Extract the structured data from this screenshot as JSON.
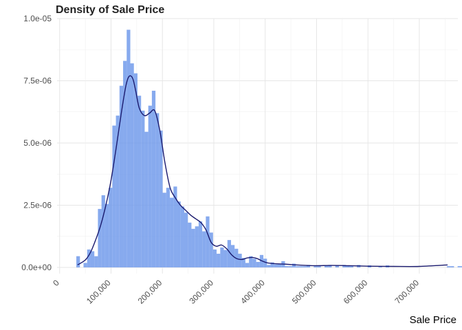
{
  "chart_data": {
    "type": "bar",
    "title": "Density of Sale Price",
    "xlabel": "Sale Price",
    "ylabel": "",
    "xlim": [
      -5000,
      775000
    ],
    "ylim": [
      -2.5e-07,
      1e-05
    ],
    "grid": true,
    "x_ticks": [
      {
        "value": 0,
        "label": "0"
      },
      {
        "value": 100000,
        "label": "100,000"
      },
      {
        "value": 200000,
        "label": "200,000"
      },
      {
        "value": 300000,
        "label": "300,000"
      },
      {
        "value": 400000,
        "label": "400,000"
      },
      {
        "value": 500000,
        "label": "500,000"
      },
      {
        "value": 600000,
        "label": "600,000"
      },
      {
        "value": 700000,
        "label": "700,000"
      }
    ],
    "y_ticks": [
      {
        "value": 0,
        "label": "0.0e+00"
      },
      {
        "value": 2.5e-06,
        "label": "2.5e-06"
      },
      {
        "value": 5e-06,
        "label": "5.0e-06"
      },
      {
        "value": 7.5e-06,
        "label": "7.5e-06"
      },
      {
        "value": 1e-05,
        "label": "1.0e-05"
      }
    ],
    "series": [
      {
        "kind": "histogram",
        "color": "#6d97ea",
        "bin_start": 32500,
        "bin_width": 7000,
        "values": [
          4.5e-07,
          0,
          1.8e-07,
          7.2e-07,
          6.5e-07,
          4.5e-07,
          2.35e-06,
          2.9e-06,
          2.55e-06,
          3.2e-06,
          5.7e-06,
          6.1e-06,
          7.3e-06,
          8.3e-06,
          9.55e-06,
          8.2e-06,
          7.8e-06,
          6.9e-06,
          6.3e-06,
          5.45e-06,
          6.5e-06,
          7.1e-06,
          6.2e-06,
          5.5e-06,
          3e-06,
          3.2e-06,
          2.8e-06,
          3.25e-06,
          2.65e-06,
          2.45e-06,
          2.2e-06,
          1.8e-06,
          1.55e-06,
          1.65e-06,
          1.85e-06,
          1.45e-06,
          2.05e-06,
          1.4e-06,
          7.2e-07,
          5.5e-07,
          8e-07,
          7e-07,
          1.1e-06,
          9e-07,
          7.5e-07,
          5.5e-07,
          3.8e-07,
          1.8e-07,
          4.5e-07,
          3.5e-07,
          2.2e-07,
          5e-07,
          3.5e-07,
          1e-07,
          2e-07,
          1.2e-07,
          1.5e-07,
          2.5e-07,
          5e-08,
          5e-08,
          1.5e-07,
          5e-08,
          5e-08,
          5e-08,
          1e-07,
          0,
          5e-08,
          5e-08,
          0,
          8e-08,
          1e-07,
          0,
          8e-08,
          0,
          1e-07,
          8e-08,
          5e-08,
          0,
          1e-07,
          0,
          0,
          8e-08,
          0,
          0,
          5e-08,
          0,
          8e-08,
          0,
          0,
          0,
          0,
          0,
          0,
          0,
          0,
          0,
          0,
          0,
          0,
          0,
          0,
          0,
          0,
          5e-08,
          5e-08,
          0,
          5e-08,
          5e-08,
          0,
          0,
          0,
          0,
          0,
          0,
          0,
          0,
          0,
          0,
          0,
          0
        ]
      },
      {
        "kind": "density",
        "color": "#1a1a6e",
        "x": [
          34900,
          50000,
          60000,
          70000,
          80000,
          90000,
          100000,
          110000,
          120000,
          128000,
          133000,
          138000,
          143000,
          148000,
          155000,
          165000,
          175000,
          185000,
          195000,
          205000,
          215000,
          225000,
          235000,
          245000,
          255000,
          265000,
          275000,
          285000,
          295000,
          305000,
          315000,
          325000,
          335000,
          345000,
          355000,
          365000,
          375000,
          385000,
          395000,
          405000,
          420000,
          440000,
          460000,
          480000,
          500000,
          530000,
          560000,
          600000,
          650000,
          700000,
          755000
        ],
        "y": [
          1e-07,
          3e-07,
          6e-07,
          1.1e-06,
          1.7e-06,
          2.5e-06,
          3.5e-06,
          4.8e-06,
          6.2e-06,
          7.2e-06,
          7.6e-06,
          7.7e-06,
          7.55e-06,
          7.1e-06,
          6.4e-06,
          6.1e-06,
          6.2e-06,
          6.3e-06,
          5.5e-06,
          4.2e-06,
          3.2e-06,
          2.8e-06,
          2.5e-06,
          2.3e-06,
          2.1e-06,
          1.95e-06,
          1.8e-06,
          1.5e-06,
          1e-06,
          8.5e-07,
          9e-07,
          7.5e-07,
          5e-07,
          3.5e-07,
          3.2e-07,
          3.8e-07,
          4e-07,
          3.5e-07,
          2.5e-07,
          1.8e-07,
          1.5e-07,
          1.3e-07,
          1e-07,
          8e-08,
          7e-08,
          8e-08,
          7e-08,
          5e-08,
          4e-08,
          4e-08,
          1e-07
        ]
      }
    ]
  }
}
